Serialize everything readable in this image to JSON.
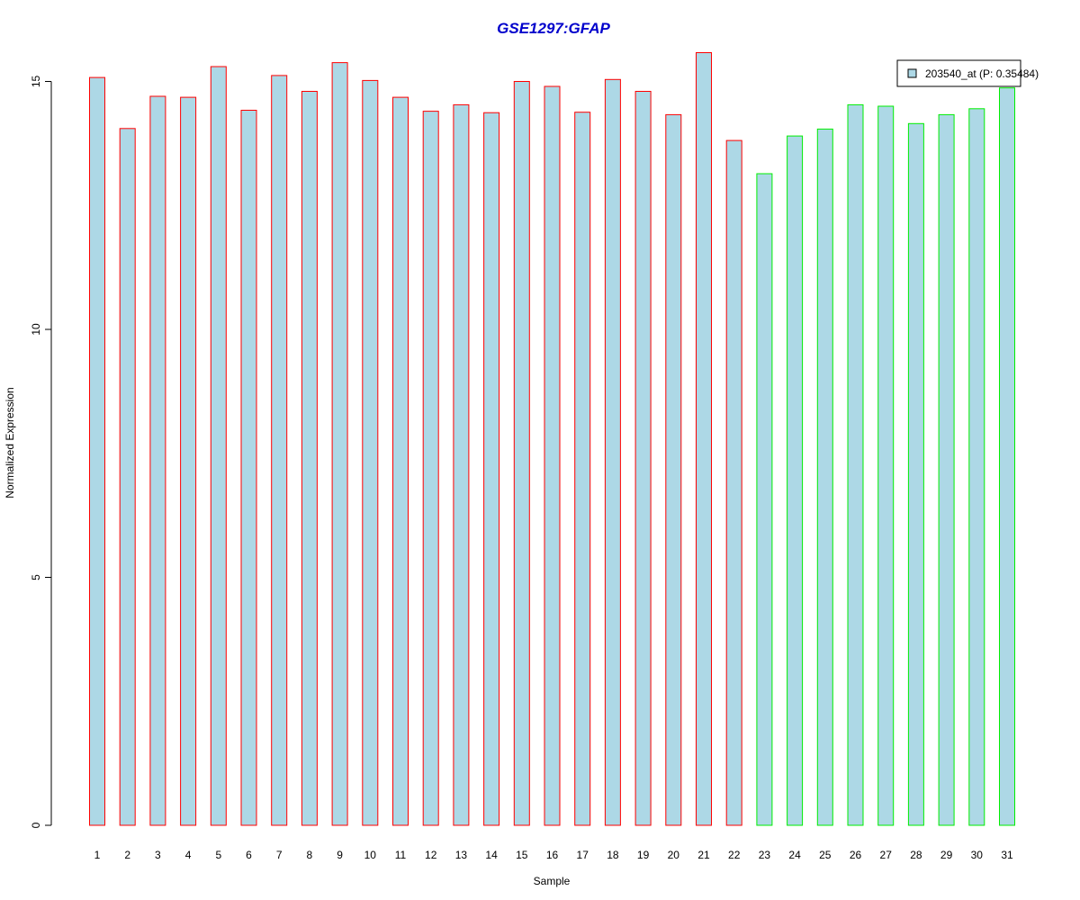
{
  "chart_data": {
    "type": "bar",
    "title": "GSE1297:GFAP",
    "xlabel": "Sample",
    "ylabel": "Normalized Expression",
    "ylim": [
      0,
      15.7
    ],
    "yticks": [
      0,
      5,
      10,
      15
    ],
    "categories": [
      "1",
      "2",
      "3",
      "4",
      "5",
      "6",
      "7",
      "8",
      "9",
      "10",
      "11",
      "12",
      "13",
      "14",
      "15",
      "16",
      "17",
      "18",
      "19",
      "20",
      "21",
      "22",
      "23",
      "24",
      "25",
      "26",
      "27",
      "28",
      "29",
      "30",
      "31"
    ],
    "series": [
      {
        "name": "203540_at (P: 0.35484)",
        "values": [
          15.08,
          14.05,
          14.7,
          14.68,
          15.3,
          14.42,
          15.12,
          14.8,
          15.38,
          15.02,
          14.68,
          14.4,
          14.53,
          14.37,
          15.0,
          14.9,
          14.38,
          15.04,
          14.8,
          14.33,
          15.58,
          13.81,
          13.14,
          13.9,
          14.04,
          14.53,
          14.5,
          14.15,
          14.33,
          14.45,
          14.87
        ]
      }
    ],
    "groups": [
      "red",
      "red",
      "red",
      "red",
      "red",
      "red",
      "red",
      "red",
      "red",
      "red",
      "red",
      "red",
      "red",
      "red",
      "red",
      "red",
      "red",
      "red",
      "red",
      "red",
      "red",
      "red",
      "green",
      "green",
      "green",
      "green",
      "green",
      "green",
      "green",
      "green",
      "green"
    ],
    "grid": false,
    "legend_position": "top-right",
    "colors": {
      "title": "#0000CC",
      "bar_fill": "#ADD8E6",
      "group_red": "#FF0000",
      "group_green": "#00EE00",
      "axis": "#000000",
      "legend_border": "#000000"
    }
  }
}
